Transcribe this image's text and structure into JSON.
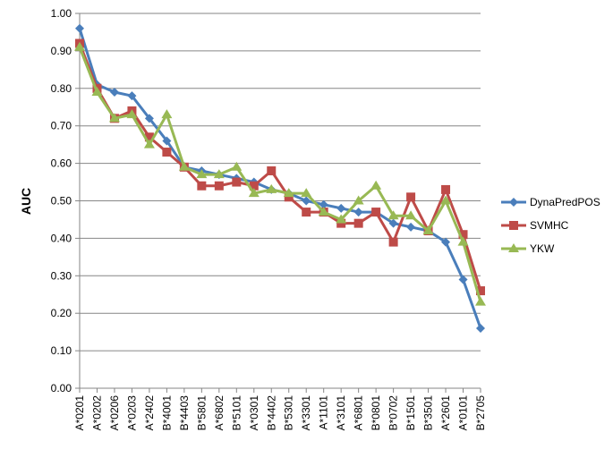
{
  "chart_data": {
    "type": "line",
    "title": "",
    "xlabel": "",
    "ylabel": "AUC",
    "ylim": [
      0,
      1
    ],
    "y_ticks": [
      "0.00",
      "0.10",
      "0.20",
      "0.30",
      "0.40",
      "0.50",
      "0.60",
      "0.70",
      "0.80",
      "0.90",
      "1.00"
    ],
    "grid": "horizontal",
    "legend_position": "right",
    "categories": [
      "A*0201",
      "A*0202",
      "A*0206",
      "A*0203",
      "A*2402",
      "B*4001",
      "B*4403",
      "B*5801",
      "A*6802",
      "B*5101",
      "A*0301",
      "B*4402",
      "B*5301",
      "A*3301",
      "A*1101",
      "A*3101",
      "A*6801",
      "B*0801",
      "B*0702",
      "B*1501",
      "B*3501",
      "A*2601",
      "A*0101",
      "B*2705"
    ],
    "series": [
      {
        "name": "DynaPredPOS",
        "color": "#4a7ebb",
        "marker": "diamond",
        "values": [
          0.96,
          0.81,
          0.79,
          0.78,
          0.72,
          0.66,
          0.59,
          0.58,
          0.57,
          0.56,
          0.55,
          0.53,
          0.52,
          0.5,
          0.49,
          0.48,
          0.47,
          0.47,
          0.44,
          0.43,
          0.42,
          0.39,
          0.29,
          0.16
        ]
      },
      {
        "name": "SVMHC",
        "color": "#be4b48",
        "marker": "square",
        "values": [
          0.92,
          0.8,
          0.72,
          0.74,
          0.67,
          0.63,
          0.59,
          0.54,
          0.54,
          0.55,
          0.54,
          0.58,
          0.51,
          0.47,
          0.47,
          0.44,
          0.44,
          0.47,
          0.39,
          0.51,
          0.42,
          0.53,
          0.41,
          0.26
        ]
      },
      {
        "name": "YKW",
        "color": "#98b954",
        "marker": "triangle",
        "values": [
          0.91,
          0.79,
          0.72,
          0.73,
          0.65,
          0.73,
          0.59,
          0.57,
          0.57,
          0.59,
          0.52,
          0.53,
          0.52,
          0.52,
          0.47,
          0.45,
          0.5,
          0.54,
          0.46,
          0.46,
          0.42,
          0.5,
          0.39,
          0.23
        ]
      }
    ]
  }
}
